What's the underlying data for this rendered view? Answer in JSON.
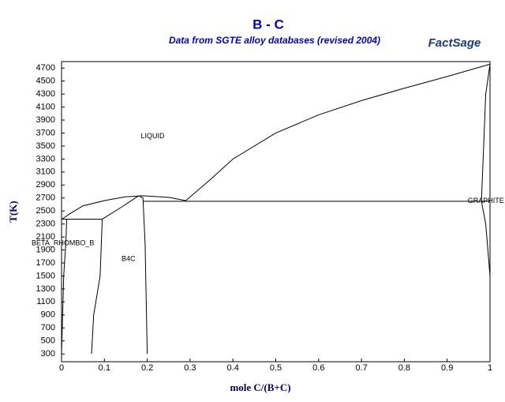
{
  "chart_data": {
    "type": "line",
    "title": "B - C",
    "subtitle": "Data from SGTE alloy databases (revised 2004)",
    "logo": "FactSage",
    "x_label": "mole C/(B+C)",
    "y_label": "T(K)",
    "xlim": [
      0,
      1
    ],
    "ylim": [
      180,
      4800
    ],
    "xticks": [
      0,
      0.1,
      0.2,
      0.3,
      0.4,
      0.5,
      0.6,
      0.7,
      0.8,
      0.9,
      1
    ],
    "yticks": [
      300,
      500,
      700,
      900,
      1100,
      1300,
      1500,
      1700,
      1900,
      2100,
      2300,
      2500,
      2700,
      2900,
      3100,
      3300,
      3500,
      3700,
      3900,
      4100,
      4300,
      4500,
      4700
    ],
    "series": [
      {
        "color": "#000000",
        "x": [
          0,
          0.02,
          0.05,
          0.1,
          0.15,
          0.19,
          0.25,
          0.29
        ],
        "values": [
          2370,
          2460,
          2580,
          2660,
          2720,
          2735,
          2710,
          2660
        ]
      },
      {
        "color": "#000000",
        "x": [
          0.29,
          0.35,
          0.4,
          0.5,
          0.6,
          0.7,
          0.8,
          0.9,
          1
        ],
        "values": [
          2660,
          3000,
          3300,
          3700,
          3980,
          4200,
          4390,
          4570,
          4760
        ]
      },
      {
        "color": "#000000",
        "x": [
          0,
          0.095
        ],
        "values": [
          2375,
          2375
        ]
      },
      {
        "color": "#000000",
        "x": [
          0.095,
          0.14,
          0.18
        ],
        "values": [
          2375,
          2560,
          2735
        ]
      },
      {
        "color": "#000000",
        "x": [
          0.19,
          1
        ],
        "values": [
          2650,
          2650
        ]
      },
      {
        "color": "#000000",
        "x": [
          0.012,
          0.01,
          0.005,
          0
        ],
        "values": [
          2375,
          2000,
          1500,
          300
        ]
      },
      {
        "color": "#000000",
        "x": [
          0.095,
          0.09,
          0.075,
          0.07
        ],
        "values": [
          2375,
          1500,
          900,
          300
        ]
      },
      {
        "color": "#000000",
        "x": [
          0.18,
          0.19,
          0.195,
          0.2
        ],
        "values": [
          2735,
          2700,
          2000,
          300
        ]
      },
      {
        "color": "#000000",
        "x": [
          1,
          0.99,
          0.98,
          0.99,
          1
        ],
        "values": [
          4760,
          4300,
          2650,
          2300,
          1500
        ]
      }
    ],
    "annotations": [
      {
        "text": "LIQUID",
        "x": 0.185,
        "y": 3650
      },
      {
        "text": "GRAPHITE",
        "x": 0.948,
        "y": 2650
      },
      {
        "text": "BETA_RHOMBO_B",
        "x": -0.07,
        "y": 2000
      },
      {
        "text": "B4C",
        "x": 0.14,
        "y": 1760
      }
    ]
  }
}
